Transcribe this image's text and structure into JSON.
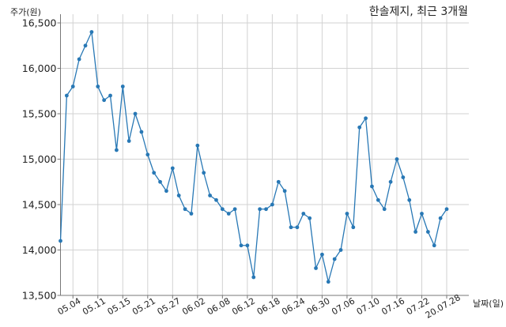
{
  "colors": {
    "line": "#2878b5",
    "grid": "#d2d2d2",
    "axis": "#777777",
    "text": "#222222",
    "background": "#ffffff"
  },
  "chart_data": {
    "type": "line",
    "title": "한솔제지, 최근 3개월",
    "ylabel": "주가(원)",
    "xlabel": "날짜(일)",
    "ylim": [
      13500,
      16500
    ],
    "yticks": [
      13500,
      14000,
      14500,
      15000,
      15500,
      16000,
      16500
    ],
    "ytick_labels": [
      "13,500",
      "14,000",
      "14,500",
      "15,000",
      "15,500",
      "16,000",
      "16,500"
    ],
    "x_ticks": [
      2,
      6,
      10,
      14,
      18,
      22,
      26,
      30,
      34,
      38,
      42,
      46,
      50,
      54,
      58,
      62
    ],
    "x_tick_labels": [
      "05.04",
      "05.11",
      "05.15",
      "05.21",
      "05.27",
      "06.02",
      "06.08",
      "06.12",
      "06.18",
      "06.24",
      "06.30",
      "07.06",
      "07.10",
      "07.16",
      "07.22",
      "20.07.28"
    ],
    "grid": true,
    "markers": true,
    "series": [
      {
        "values": [
          14100,
          15700,
          15800,
          16100,
          16250,
          16400,
          15800,
          15650,
          15700,
          15100,
          15800,
          15200,
          15500,
          15300,
          15050,
          14850,
          14750,
          14650,
          14900,
          14600,
          14450,
          14400,
          15150,
          14850,
          14600,
          14550,
          14450,
          14400,
          14450,
          14050,
          14050,
          13700,
          14450,
          14450,
          14500,
          14750,
          14650,
          14250,
          14250,
          14400,
          14350,
          13800,
          13950,
          13650,
          13900,
          14000,
          14400,
          14250,
          15350,
          15450,
          14700,
          14550,
          14450,
          14750,
          15000,
          14800,
          14550,
          14200,
          14400,
          14200,
          14050,
          14350,
          14450
        ]
      }
    ]
  }
}
